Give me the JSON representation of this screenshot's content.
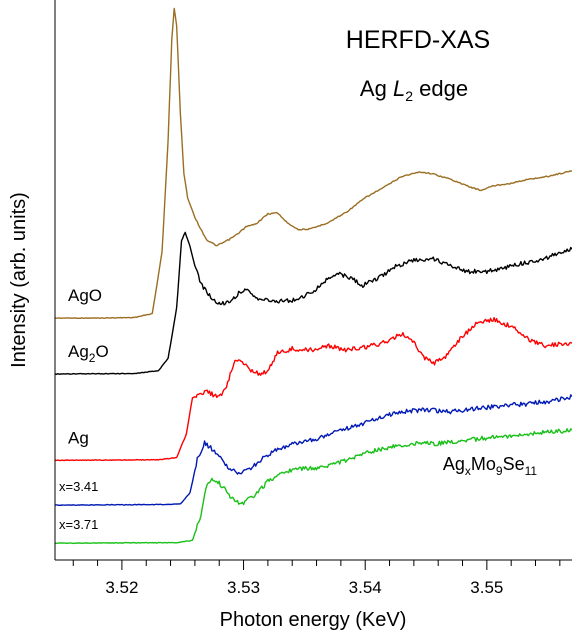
{
  "chart_data": {
    "type": "line",
    "title": "HERFD-XAS",
    "subtitle": {
      "prefix": "Ag ",
      "italic": "L",
      "sub": "2",
      "suffix": " edge"
    },
    "xlabel": "Photon energy (KeV)",
    "ylabel": "Intensity (arb. units)",
    "xlim": [
      3.5145,
      3.557
    ],
    "xticks": [
      "3.52",
      "3.53",
      "3.54",
      "3.55"
    ],
    "ylim": [
      0,
      1
    ],
    "yticks_shown": false,
    "grid": false,
    "annotation": {
      "base": "Ag",
      "x_sub": "x",
      "mo": "Mo",
      "mo_sub": "9",
      "se": "Se",
      "se_sub": "11"
    },
    "series": [
      {
        "name": "AgO",
        "color": "#9a6e22",
        "label": {
          "base": "AgO",
          "sub": ""
        },
        "points": [
          [
            3.5145,
            0.432
          ],
          [
            3.518,
            0.432
          ],
          [
            3.521,
            0.433
          ],
          [
            3.5225,
            0.44
          ],
          [
            3.5233,
            0.55
          ],
          [
            3.5238,
            0.75
          ],
          [
            3.5241,
            0.93
          ],
          [
            3.5243,
            0.985
          ],
          [
            3.5245,
            0.955
          ],
          [
            3.5248,
            0.8
          ],
          [
            3.5251,
            0.69
          ],
          [
            3.5254,
            0.647
          ],
          [
            3.526,
            0.612
          ],
          [
            3.5265,
            0.59
          ],
          [
            3.527,
            0.571
          ],
          [
            3.5278,
            0.561
          ],
          [
            3.5288,
            0.572
          ],
          [
            3.5295,
            0.582
          ],
          [
            3.5302,
            0.595
          ],
          [
            3.531,
            0.6
          ],
          [
            3.532,
            0.618
          ],
          [
            3.5328,
            0.62
          ],
          [
            3.5335,
            0.604
          ],
          [
            3.5345,
            0.59
          ],
          [
            3.5355,
            0.591
          ],
          [
            3.537,
            0.603
          ],
          [
            3.5385,
            0.622
          ],
          [
            3.54,
            0.647
          ],
          [
            3.5415,
            0.665
          ],
          [
            3.543,
            0.685
          ],
          [
            3.5445,
            0.693
          ],
          [
            3.5455,
            0.69
          ],
          [
            3.547,
            0.68
          ],
          [
            3.5485,
            0.667
          ],
          [
            3.5495,
            0.66
          ],
          [
            3.5505,
            0.668
          ],
          [
            3.552,
            0.673
          ],
          [
            3.5535,
            0.68
          ],
          [
            3.555,
            0.685
          ],
          [
            3.557,
            0.695
          ]
        ]
      },
      {
        "name": "Ag2O",
        "color": "#000000",
        "label": {
          "base": "Ag",
          "sub": "2",
          "tail": "O"
        },
        "points": [
          [
            3.5145,
            0.332
          ],
          [
            3.521,
            0.333
          ],
          [
            3.523,
            0.338
          ],
          [
            3.5238,
            0.36
          ],
          [
            3.5245,
            0.45
          ],
          [
            3.5249,
            0.57
          ],
          [
            3.5252,
            0.585
          ],
          [
            3.5256,
            0.56
          ],
          [
            3.526,
            0.525
          ],
          [
            3.5265,
            0.492
          ],
          [
            3.527,
            0.478
          ],
          [
            3.5275,
            0.465
          ],
          [
            3.528,
            0.457
          ],
          [
            3.529,
            0.462
          ],
          [
            3.5297,
            0.48
          ],
          [
            3.5302,
            0.482
          ],
          [
            3.5308,
            0.47
          ],
          [
            3.532,
            0.463
          ],
          [
            3.534,
            0.463
          ],
          [
            3.5355,
            0.476
          ],
          [
            3.5368,
            0.5
          ],
          [
            3.5378,
            0.512
          ],
          [
            3.5388,
            0.503
          ],
          [
            3.5398,
            0.49
          ],
          [
            3.541,
            0.502
          ],
          [
            3.5425,
            0.525
          ],
          [
            3.544,
            0.535
          ],
          [
            3.5455,
            0.538
          ],
          [
            3.547,
            0.527
          ],
          [
            3.5485,
            0.515
          ],
          [
            3.55,
            0.515
          ],
          [
            3.5515,
            0.522
          ],
          [
            3.553,
            0.53
          ],
          [
            3.5545,
            0.537
          ],
          [
            3.557,
            0.555
          ]
        ]
      },
      {
        "name": "Ag",
        "color": "#ff0000",
        "label": {
          "base": "Ag",
          "sub": ""
        },
        "points": [
          [
            3.5145,
            0.178
          ],
          [
            3.523,
            0.179
          ],
          [
            3.5245,
            0.183
          ],
          [
            3.5253,
            0.225
          ],
          [
            3.5258,
            0.29
          ],
          [
            3.5264,
            0.296
          ],
          [
            3.527,
            0.3
          ],
          [
            3.528,
            0.29
          ],
          [
            3.5286,
            0.31
          ],
          [
            3.5293,
            0.36
          ],
          [
            3.5298,
            0.358
          ],
          [
            3.5305,
            0.34
          ],
          [
            3.5315,
            0.33
          ],
          [
            3.5322,
            0.345
          ],
          [
            3.5328,
            0.37
          ],
          [
            3.534,
            0.377
          ],
          [
            3.5355,
            0.375
          ],
          [
            3.537,
            0.382
          ],
          [
            3.5385,
            0.375
          ],
          [
            3.54,
            0.38
          ],
          [
            3.5418,
            0.39
          ],
          [
            3.543,
            0.405
          ],
          [
            3.5438,
            0.395
          ],
          [
            3.5448,
            0.362
          ],
          [
            3.5457,
            0.352
          ],
          [
            3.5465,
            0.36
          ],
          [
            3.5478,
            0.395
          ],
          [
            3.549,
            0.42
          ],
          [
            3.5505,
            0.43
          ],
          [
            3.552,
            0.417
          ],
          [
            3.5535,
            0.393
          ],
          [
            3.5548,
            0.383
          ],
          [
            3.556,
            0.385
          ],
          [
            3.557,
            0.387
          ]
        ]
      },
      {
        "name": "x=3.41",
        "color": "#0019b4",
        "label": {
          "base": "x=3.41",
          "sub": ""
        },
        "points": [
          [
            3.5145,
            0.098
          ],
          [
            3.5235,
            0.099
          ],
          [
            3.5248,
            0.1
          ],
          [
            3.5256,
            0.12
          ],
          [
            3.5262,
            0.18
          ],
          [
            3.5268,
            0.21
          ],
          [
            3.5273,
            0.2
          ],
          [
            3.528,
            0.185
          ],
          [
            3.5288,
            0.162
          ],
          [
            3.5296,
            0.155
          ],
          [
            3.5305,
            0.163
          ],
          [
            3.5315,
            0.18
          ],
          [
            3.533,
            0.2
          ],
          [
            3.5345,
            0.21
          ],
          [
            3.536,
            0.215
          ],
          [
            3.5375,
            0.228
          ],
          [
            3.539,
            0.238
          ],
          [
            3.541,
            0.253
          ],
          [
            3.543,
            0.265
          ],
          [
            3.545,
            0.268
          ],
          [
            3.547,
            0.265
          ],
          [
            3.549,
            0.27
          ],
          [
            3.551,
            0.275
          ],
          [
            3.553,
            0.278
          ],
          [
            3.555,
            0.283
          ],
          [
            3.557,
            0.292
          ]
        ]
      },
      {
        "name": "x=3.71",
        "color": "#18c018",
        "label": {
          "base": "x=3.71",
          "sub": ""
        },
        "points": [
          [
            3.5145,
            0.03
          ],
          [
            3.5245,
            0.031
          ],
          [
            3.5258,
            0.035
          ],
          [
            3.5265,
            0.08
          ],
          [
            3.527,
            0.135
          ],
          [
            3.5276,
            0.145
          ],
          [
            3.5282,
            0.133
          ],
          [
            3.529,
            0.11
          ],
          [
            3.5298,
            0.1
          ],
          [
            3.5308,
            0.113
          ],
          [
            3.532,
            0.14
          ],
          [
            3.5335,
            0.158
          ],
          [
            3.535,
            0.163
          ],
          [
            3.5365,
            0.165
          ],
          [
            3.538,
            0.175
          ],
          [
            3.54,
            0.19
          ],
          [
            3.542,
            0.202
          ],
          [
            3.544,
            0.208
          ],
          [
            3.546,
            0.208
          ],
          [
            3.548,
            0.213
          ],
          [
            3.55,
            0.218
          ],
          [
            3.552,
            0.222
          ],
          [
            3.554,
            0.226
          ],
          [
            3.557,
            0.232
          ]
        ]
      }
    ]
  }
}
